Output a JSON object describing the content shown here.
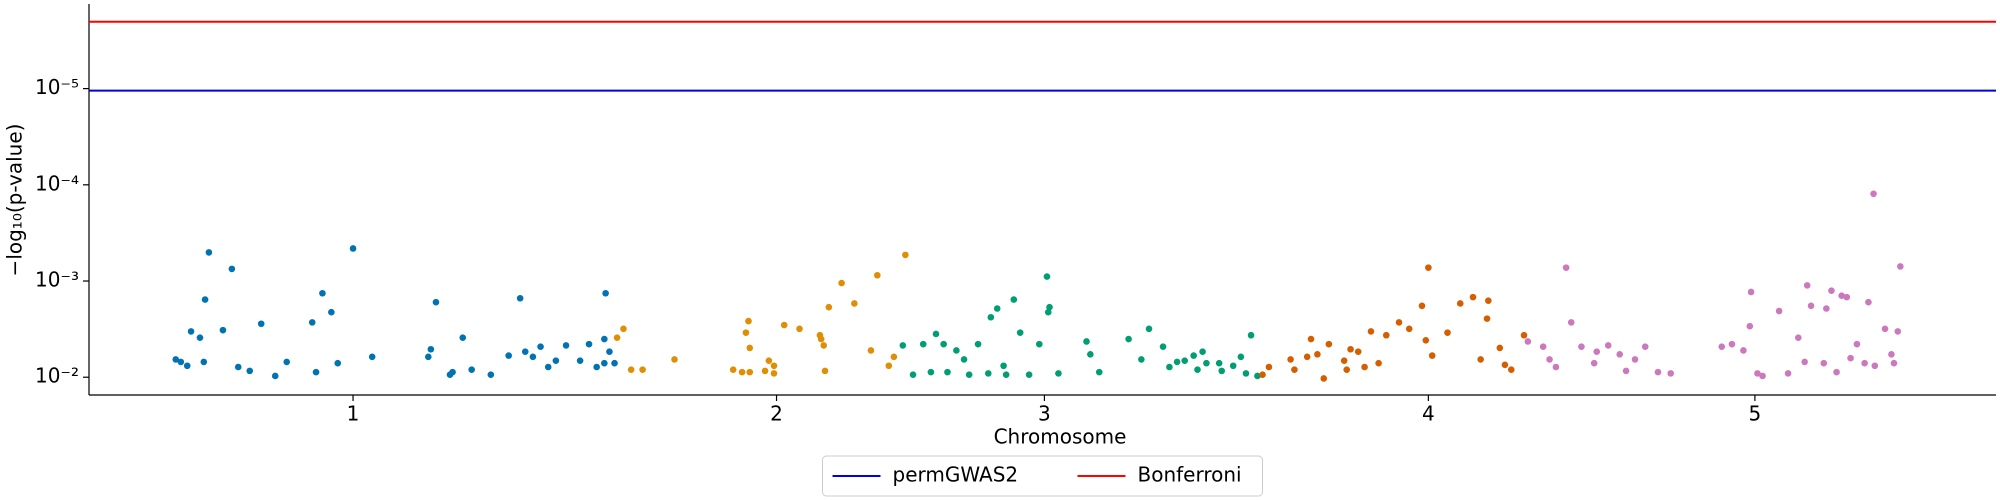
{
  "chart_data": {
    "type": "scatter",
    "xlabel": "Chromosome",
    "ylabel": "−log₁₀(p-value)",
    "xlim": [
      0,
      1495
    ],
    "xticks": [
      {
        "value": 207,
        "label": "1"
      },
      {
        "value": 539,
        "label": "2"
      },
      {
        "value": 749,
        "label": "3"
      },
      {
        "value": 1050,
        "label": "4"
      },
      {
        "value": 1306,
        "label": "5"
      }
    ],
    "ylim": [
      0.0153,
      1.32e-06
    ],
    "yscale": "log",
    "yticks": [
      {
        "value": 0.01,
        "label": "10⁻²"
      },
      {
        "value": 0.001,
        "label": "10⁻³"
      },
      {
        "value": 0.0001,
        "label": "10⁻⁴"
      },
      {
        "value": 1e-05,
        "label": "10⁻⁵"
      }
    ],
    "legend": "bottom",
    "hlines": [
      {
        "name": "permGWAS2",
        "color": "#0000e0",
        "value": 1.05e-05
      },
      {
        "name": "Bonferroni",
        "color": "#ff0000",
        "value": 2.02e-06
      }
    ],
    "series": [
      {
        "color": "#0173b2",
        "x": [
          68,
          72,
          77,
          80,
          87,
          90,
          91,
          94,
          105,
          112,
          117,
          126,
          135,
          146,
          155,
          175,
          178,
          183,
          190,
          195,
          207,
          222,
          266,
          268,
          272,
          283,
          285,
          293,
          300,
          315,
          329,
          338,
          342,
          348,
          354,
          360,
          366,
          374,
          385,
          392,
          398,
          404,
          404,
          405,
          408,
          412
        ],
        "values": [
          0.00653,
          0.00693,
          0.0076,
          0.00334,
          0.00388,
          0.00693,
          0.00156,
          0.000504,
          0.00324,
          0.000748,
          0.00783,
          0.00859,
          0.00278,
          0.0097,
          0.00693,
          0.00269,
          0.00885,
          0.00134,
          0.00211,
          0.00715,
          0.000459,
          0.00614,
          0.00614,
          0.00512,
          0.00166,
          0.00941,
          0.00885,
          0.00388,
          0.00834,
          0.00941,
          0.00596,
          0.00151,
          0.00543,
          0.00614,
          0.00481,
          0.00783,
          0.00673,
          0.00467,
          0.00673,
          0.00453,
          0.00783,
          0.00715,
          0.00401,
          0.00134,
          0.00543,
          0.00715
        ]
      },
      {
        "color": "#de8f05",
        "x": [
          414,
          419,
          425,
          434,
          459,
          505,
          512,
          518,
          515,
          517,
          518,
          530,
          533,
          537,
          537,
          545,
          557,
          573,
          576,
          577,
          574,
          580,
          590,
          600,
          613,
          618,
          627,
          640,
          631
        ],
        "values": [
          0.00388,
          0.00314,
          0.00834,
          0.00834,
          0.00653,
          0.00834,
          0.00885,
          0.00885,
          0.00344,
          0.00261,
          0.00496,
          0.00859,
          0.00673,
          0.0076,
          0.00912,
          0.00287,
          0.00314,
          0.00366,
          0.00467,
          0.00859,
          0.00401,
          0.00187,
          0.00105,
          0.00171,
          0.00527,
          0.000871,
          0.0076,
          0.000535,
          0.00614
        ]
      },
      {
        "color": "#029e73",
        "x": [
          638,
          646,
          654,
          660,
          664,
          670,
          673,
          680,
          686,
          690,
          697,
          705,
          707,
          712,
          717,
          719,
          725,
          730,
          737,
          745,
          751,
          752,
          753,
          760,
          782,
          785,
          792,
          815,
          825,
          831,
          842,
          847,
          853,
          859,
          866,
          869,
          873,
          876,
          886,
          888,
          897,
          903,
          907,
          911,
          916
        ],
        "values": [
          0.00467,
          0.00941,
          0.00453,
          0.00885,
          0.00355,
          0.00453,
          0.00885,
          0.00527,
          0.00653,
          0.00941,
          0.00453,
          0.00912,
          0.00238,
          0.00193,
          0.0076,
          0.00941,
          0.00156,
          0.00344,
          0.00941,
          0.00453,
          0.000899,
          0.00211,
          0.00187,
          0.00912,
          0.00425,
          0.00578,
          0.00885,
          0.00401,
          0.00653,
          0.00314,
          0.00481,
          0.00783,
          0.00693,
          0.00673,
          0.00596,
          0.00834,
          0.00543,
          0.00715,
          0.00715,
          0.00859,
          0.0076,
          0.00614,
          0.00912,
          0.00366,
          0.0097
        ]
      },
      {
        "color": "#d55e00",
        "x": [
          920,
          925,
          942,
          945,
          955,
          958,
          963,
          968,
          972,
          984,
          986,
          989,
          995,
          1000,
          1005,
          1011,
          1017,
          1027,
          1035,
          1045,
          1048,
          1053,
          1065,
          1075,
          1091,
          1096,
          1106,
          1110,
          1115,
          1125,
          1050,
          1085,
          1097
        ],
        "values": [
          0.00941,
          0.00783,
          0.00653,
          0.00834,
          0.00614,
          0.00401,
          0.00578,
          0.0103,
          0.00453,
          0.00673,
          0.00834,
          0.00512,
          0.00543,
          0.00783,
          0.00334,
          0.00715,
          0.00366,
          0.00269,
          0.00314,
          0.00181,
          0.00413,
          0.00596,
          0.00344,
          0.00171,
          0.00653,
          0.00246,
          0.00496,
          0.00743,
          0.00834,
          0.00366,
          0.000726,
          0.00147,
          0.0016
        ]
      },
      {
        "color": "#cc78bc",
        "x": [
          1128,
          1140,
          1145,
          1150,
          1158,
          1162,
          1170,
          1180,
          1182,
          1191,
          1200,
          1205,
          1212,
          1220,
          1230,
          1240,
          1280,
          1288,
          1297,
          1302,
          1303,
          1308,
          1312,
          1325,
          1332,
          1340,
          1345,
          1347,
          1350,
          1360,
          1362,
          1366,
          1370,
          1374,
          1378,
          1399,
          1381,
          1386,
          1392,
          1395,
          1400,
          1408,
          1420,
          1413,
          1415,
          1418
        ],
        "values": [
          0.00425,
          0.00481,
          0.00653,
          0.00783,
          0.000726,
          0.00269,
          0.00481,
          0.00715,
          0.00543,
          0.00467,
          0.00578,
          0.00859,
          0.00653,
          0.00481,
          0.00885,
          0.00912,
          0.00481,
          0.00453,
          0.00527,
          0.00295,
          0.0013,
          0.00912,
          0.0097,
          0.00205,
          0.00912,
          0.00388,
          0.00693,
          0.00111,
          0.00181,
          0.00715,
          0.00193,
          0.00126,
          0.00885,
          0.00142,
          0.00147,
          0.000124,
          0.00633,
          0.00453,
          0.00715,
          0.00166,
          0.0076,
          0.00314,
          0.000705,
          0.00578,
          0.00715,
          0.00334
        ]
      }
    ]
  }
}
